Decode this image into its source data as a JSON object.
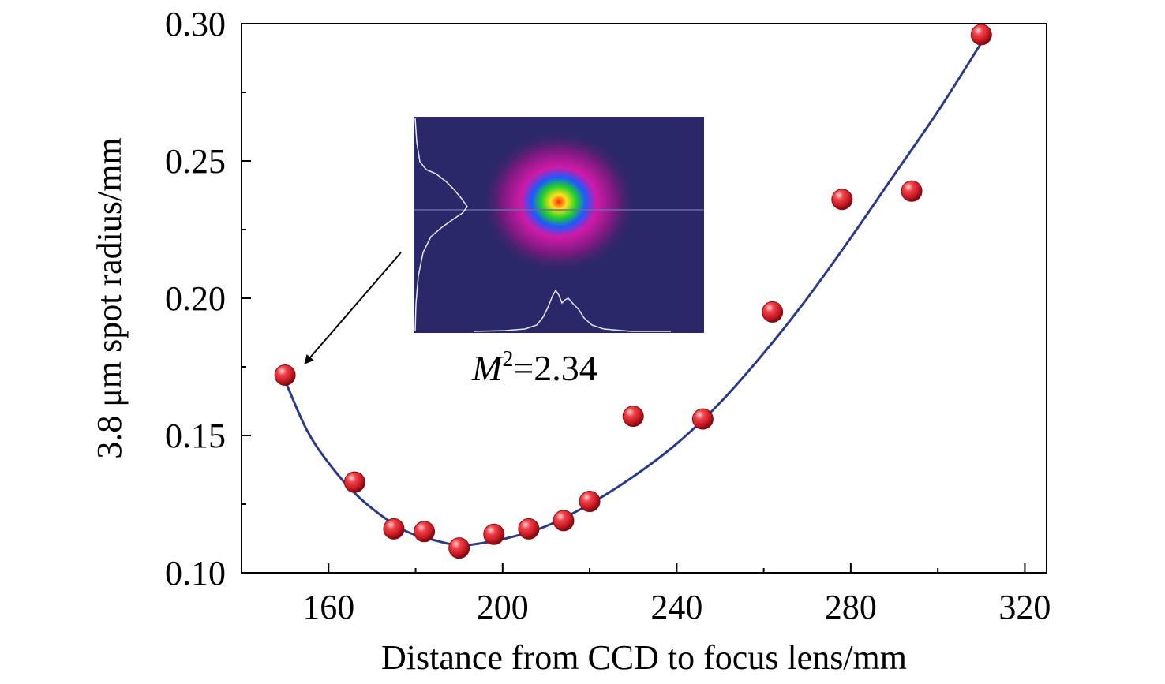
{
  "chart_data": {
    "type": "scatter",
    "xlabel": "Distance from CCD to focus lens/mm",
    "ylabel": "3.8 μm spot radius/mm",
    "xlim": [
      140,
      325
    ],
    "ylim": [
      0.1,
      0.3
    ],
    "x_ticks": [
      "160",
      "200",
      "240",
      "280",
      "320"
    ],
    "y_ticks": [
      "0.10",
      "0.15",
      "0.20",
      "0.25",
      "0.30"
    ],
    "grid": false,
    "series": [
      {
        "points": [
          {
            "x": 150,
            "y": 0.172
          },
          {
            "x": 166,
            "y": 0.133
          },
          {
            "x": 175,
            "y": 0.116
          },
          {
            "x": 182,
            "y": 0.115
          },
          {
            "x": 190,
            "y": 0.109
          },
          {
            "x": 198,
            "y": 0.114
          },
          {
            "x": 206,
            "y": 0.116
          },
          {
            "x": 214,
            "y": 0.119
          },
          {
            "x": 220,
            "y": 0.126
          },
          {
            "x": 230,
            "y": 0.157
          },
          {
            "x": 246,
            "y": 0.156
          },
          {
            "x": 262,
            "y": 0.195
          },
          {
            "x": 278,
            "y": 0.236
          },
          {
            "x": 294,
            "y": 0.239
          },
          {
            "x": 310,
            "y": 0.296
          }
        ],
        "marker_color": "#d0202a"
      }
    ],
    "fit_curve": {
      "color": "#2b3a86",
      "points": [
        {
          "x": 150,
          "y": 0.17
        },
        {
          "x": 155,
          "y": 0.152
        },
        {
          "x": 160,
          "y": 0.14
        },
        {
          "x": 166,
          "y": 0.129
        },
        {
          "x": 172,
          "y": 0.121
        },
        {
          "x": 178,
          "y": 0.115
        },
        {
          "x": 184,
          "y": 0.112
        },
        {
          "x": 190,
          "y": 0.11
        },
        {
          "x": 196,
          "y": 0.111
        },
        {
          "x": 202,
          "y": 0.113
        },
        {
          "x": 210,
          "y": 0.117
        },
        {
          "x": 220,
          "y": 0.125
        },
        {
          "x": 230,
          "y": 0.135
        },
        {
          "x": 240,
          "y": 0.147
        },
        {
          "x": 250,
          "y": 0.162
        },
        {
          "x": 260,
          "y": 0.18
        },
        {
          "x": 270,
          "y": 0.2
        },
        {
          "x": 280,
          "y": 0.222
        },
        {
          "x": 290,
          "y": 0.245
        },
        {
          "x": 300,
          "y": 0.268
        },
        {
          "x": 310,
          "y": 0.293
        }
      ]
    },
    "inset": {
      "annotation_base": "M",
      "annotation_sup": "2",
      "annotation_value": "=2.34",
      "background_color": "#2a2868",
      "arrow_target": {
        "x": 151,
        "y": 0.17
      }
    }
  }
}
